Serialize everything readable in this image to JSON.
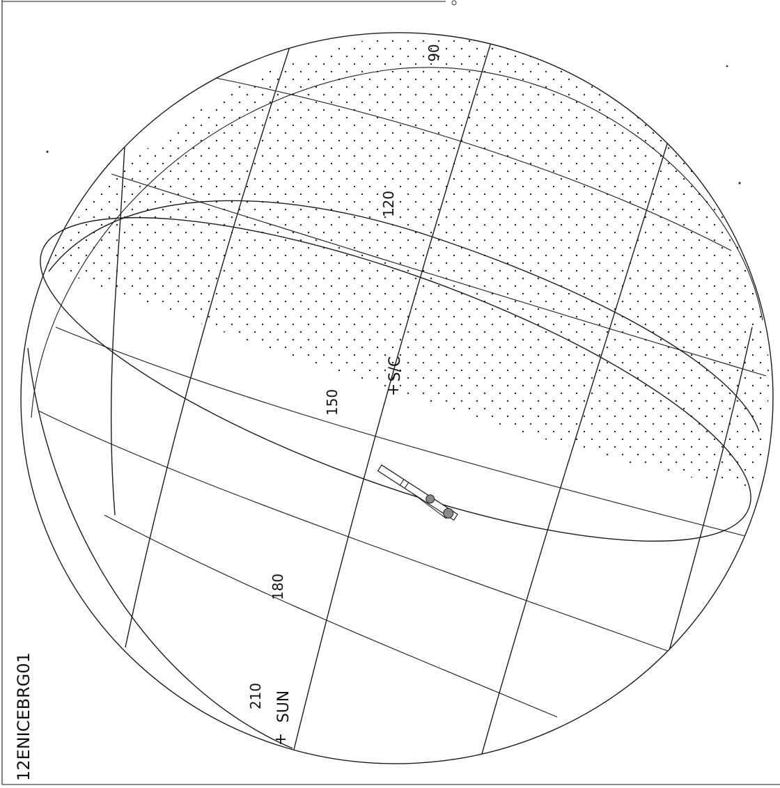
{
  "diagram": {
    "id_label": "12ENICEBRG01",
    "longitude_labels": [
      "90",
      "120",
      "150",
      "180",
      "210"
    ],
    "markers": {
      "spacecraft": "S/C",
      "sun": "SUN"
    },
    "colors": {
      "line": "#1a1a1a",
      "background": "#ffffff",
      "stipple": "#222222"
    }
  }
}
